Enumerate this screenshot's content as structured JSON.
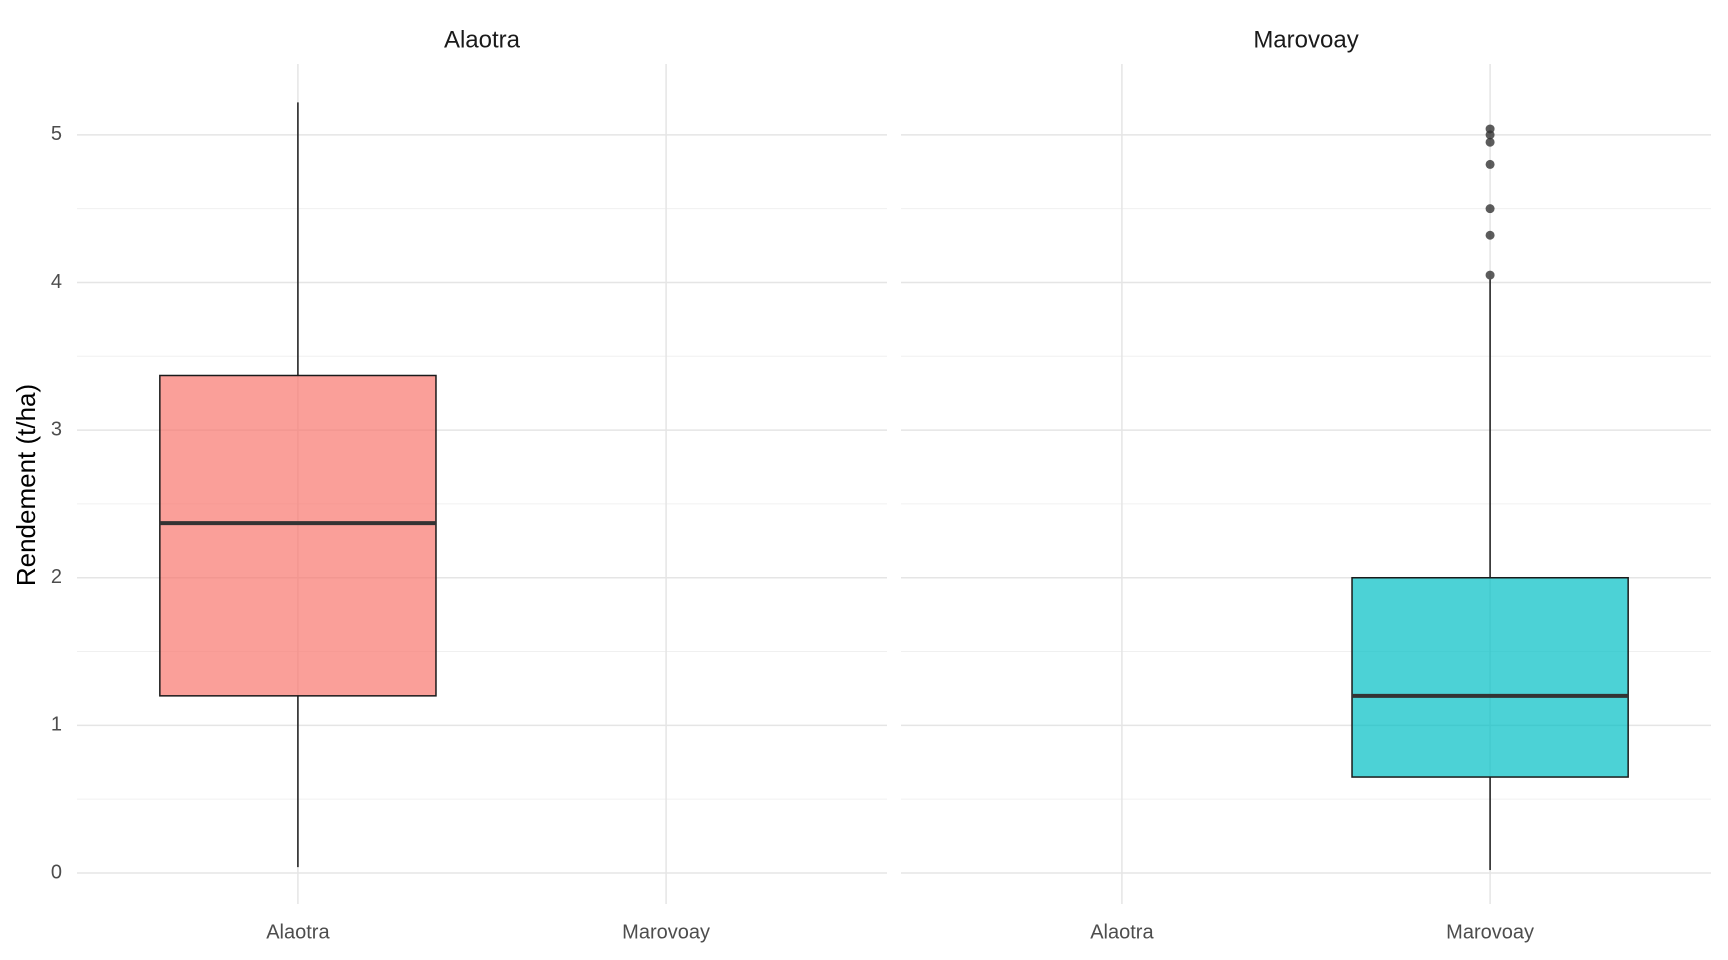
{
  "chart_data": [
    {
      "type": "box",
      "title": "Alaotra",
      "y_label": "Rendement (t/ha)",
      "categories": [
        "Alaotra",
        "Marovoay"
      ],
      "series": [
        {
          "name": "Alaotra",
          "color": "#F8766D",
          "values": [
            {
              "min": 0.04,
              "q1": 1.2,
              "median": 2.37,
              "q3": 3.37,
              "max": 5.22
            },
            null
          ]
        }
      ],
      "ylim": [
        -0.21,
        5.48
      ],
      "yticks": [
        0,
        1,
        2,
        3,
        4,
        5
      ],
      "ytick_labels": true,
      "grid": true,
      "minor_grid": true
    },
    {
      "type": "box",
      "title": "Marovoay",
      "categories": [
        "Alaotra",
        "Marovoay"
      ],
      "series": [
        {
          "name": "Marovoay",
          "color": "#00BFC4",
          "values": [
            null,
            {
              "min": 0.02,
              "q1": 0.65,
              "median": 1.2,
              "q3": 2.0,
              "max": 4.02,
              "outliers": [
                4.05,
                4.32,
                4.5,
                4.8,
                4.95,
                5.0,
                5.04
              ]
            }
          ]
        }
      ],
      "ylim": [
        -0.21,
        5.48
      ],
      "yticks": [
        0,
        1,
        2,
        3,
        4,
        5
      ],
      "ytick_labels": false,
      "grid": true,
      "minor_grid": true
    }
  ]
}
